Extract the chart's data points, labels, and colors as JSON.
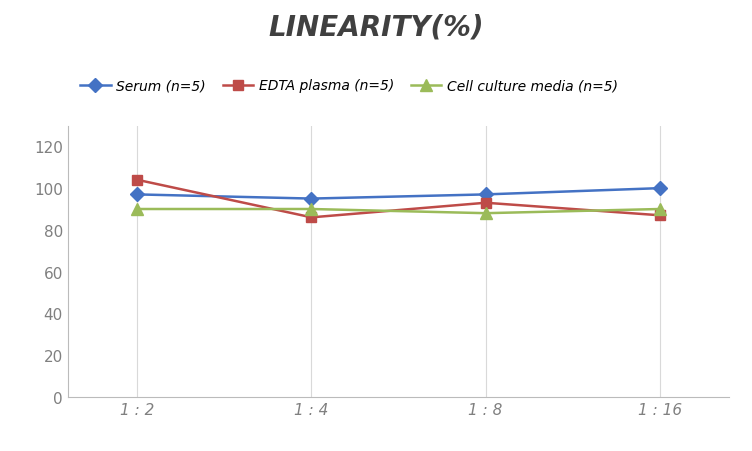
{
  "title": "LINEARITY(%)",
  "x_labels": [
    "1 : 2",
    "1 : 4",
    "1 : 8",
    "1 : 16"
  ],
  "x_positions": [
    0,
    1,
    2,
    3
  ],
  "series": [
    {
      "label": "Serum (n=5)",
      "values": [
        97,
        95,
        97,
        100
      ],
      "color": "#4472C4",
      "marker": "D",
      "marker_size": 7,
      "linewidth": 1.8
    },
    {
      "label": "EDTA plasma (n=5)",
      "values": [
        104,
        86,
        93,
        87
      ],
      "color": "#BE4B48",
      "marker": "s",
      "marker_size": 7,
      "linewidth": 1.8
    },
    {
      "label": "Cell culture media (n=5)",
      "values": [
        90,
        90,
        88,
        90
      ],
      "color": "#9BBB59",
      "marker": "^",
      "marker_size": 8,
      "linewidth": 1.8
    }
  ],
  "ylim": [
    0,
    130
  ],
  "yticks": [
    0,
    20,
    40,
    60,
    80,
    100,
    120
  ],
  "grid_color": "#D9D9D9",
  "background_color": "#FFFFFF",
  "title_fontsize": 20,
  "title_style": "italic",
  "title_weight": "bold",
  "title_color": "#404040",
  "legend_fontsize": 10,
  "tick_fontsize": 11,
  "tick_color": "#808080"
}
